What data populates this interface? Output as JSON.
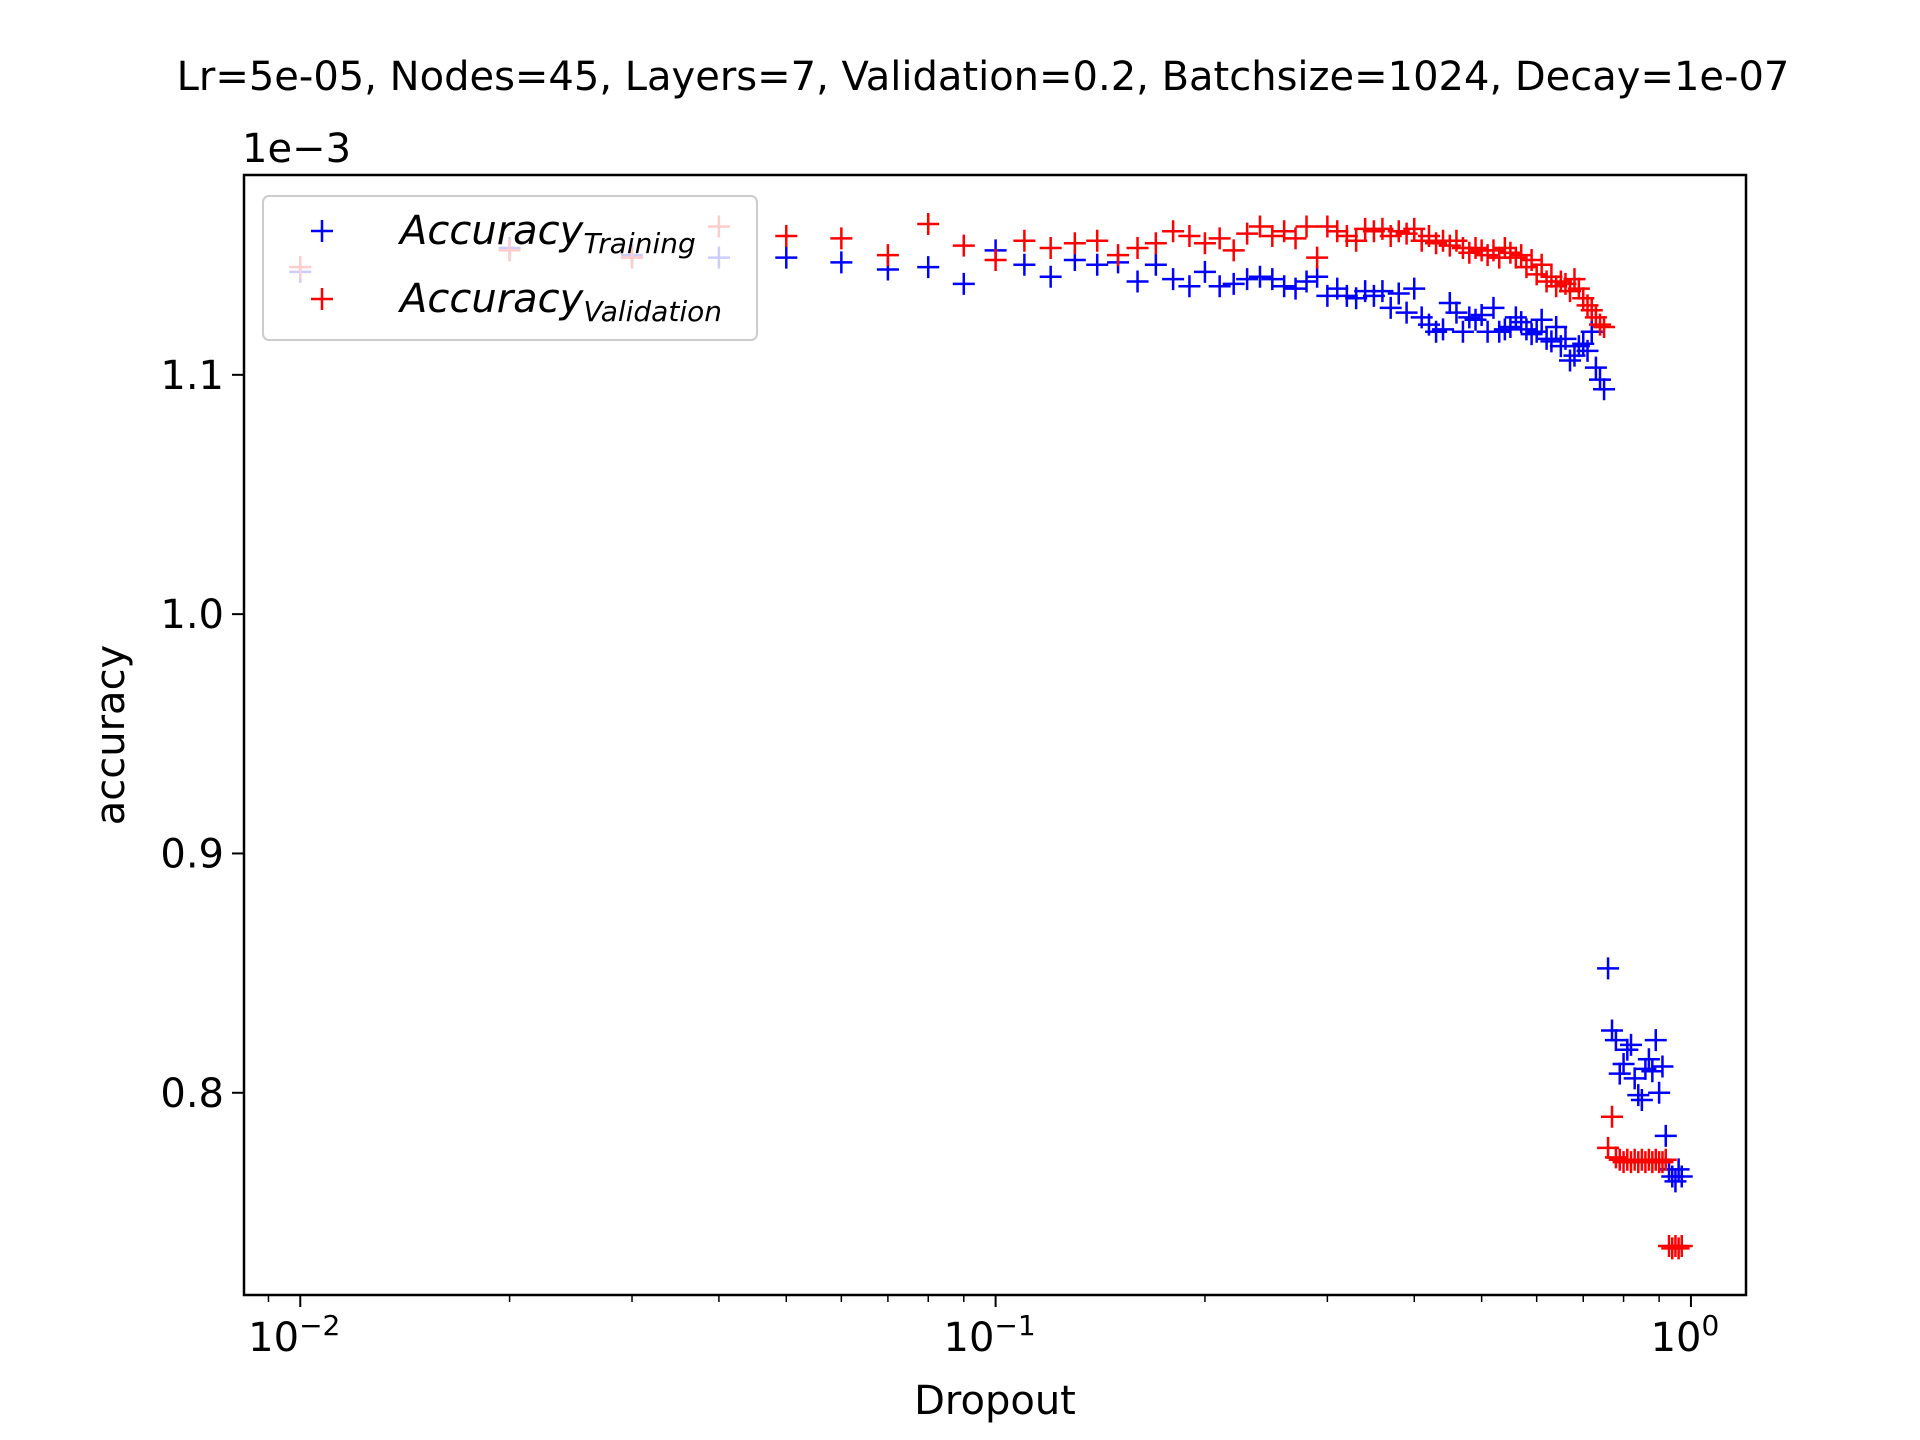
{
  "chart_data": {
    "type": "scatter",
    "title": "Lr=5e-05, Nodes=45, Layers=7, Validation=0.2, Batchsize=1024, Decay=1e-07",
    "xlabel": "Dropout",
    "ylabel": "accuracy",
    "y_offset_text": "1e−3",
    "x_scale": "log",
    "xlim": [
      0.0083,
      1.2
    ],
    "ylim": [
      0.7155,
      1.1835
    ],
    "y_unit_multiplier": 0.001,
    "x_ticks": [
      {
        "value": 0.01,
        "base": "10",
        "exp": "−2"
      },
      {
        "value": 0.1,
        "base": "10",
        "exp": "−1"
      },
      {
        "value": 1,
        "base": "10",
        "exp": "0"
      }
    ],
    "y_ticks": [
      {
        "value": 0.8,
        "label": "0.8"
      },
      {
        "value": 0.9,
        "label": "0.9"
      },
      {
        "value": 1.0,
        "label": "1.0"
      },
      {
        "value": 1.1,
        "label": "1.1"
      }
    ],
    "legend": {
      "position": "top-left",
      "entries": [
        {
          "main": "Accuracy",
          "sub": "Training",
          "color": "#0000ff"
        },
        {
          "main": "Accuracy",
          "sub": "Validation",
          "color": "#ff0000"
        }
      ]
    },
    "grid": false,
    "series": [
      {
        "name": "Accuracy_Training",
        "color": "#0000ff",
        "marker": "+",
        "points": [
          [
            0.01,
            1.143
          ],
          [
            0.02,
            1.153
          ],
          [
            0.03,
            1.15
          ],
          [
            0.04,
            1.149
          ],
          [
            0.05,
            1.149
          ],
          [
            0.06,
            1.147
          ],
          [
            0.07,
            1.144
          ],
          [
            0.08,
            1.145
          ],
          [
            0.09,
            1.138
          ],
          [
            0.1,
            1.152
          ],
          [
            0.11,
            1.146
          ],
          [
            0.12,
            1.141
          ],
          [
            0.13,
            1.148
          ],
          [
            0.14,
            1.146
          ],
          [
            0.15,
            1.147
          ],
          [
            0.16,
            1.139
          ],
          [
            0.17,
            1.146
          ],
          [
            0.18,
            1.14
          ],
          [
            0.19,
            1.137
          ],
          [
            0.2,
            1.143
          ],
          [
            0.21,
            1.137
          ],
          [
            0.22,
            1.138
          ],
          [
            0.23,
            1.14
          ],
          [
            0.24,
            1.141
          ],
          [
            0.25,
            1.14
          ],
          [
            0.26,
            1.137
          ],
          [
            0.27,
            1.136
          ],
          [
            0.28,
            1.139
          ],
          [
            0.29,
            1.141
          ],
          [
            0.3,
            1.133
          ],
          [
            0.31,
            1.136
          ],
          [
            0.32,
            1.133
          ],
          [
            0.33,
            1.132
          ],
          [
            0.34,
            1.135
          ],
          [
            0.35,
            1.133
          ],
          [
            0.36,
            1.135
          ],
          [
            0.37,
            1.128
          ],
          [
            0.38,
            1.134
          ],
          [
            0.39,
            1.126
          ],
          [
            0.4,
            1.136
          ],
          [
            0.41,
            1.124
          ],
          [
            0.42,
            1.121
          ],
          [
            0.43,
            1.118
          ],
          [
            0.44,
            1.119
          ],
          [
            0.45,
            1.13
          ],
          [
            0.46,
            1.126
          ],
          [
            0.47,
            1.118
          ],
          [
            0.48,
            1.124
          ],
          [
            0.49,
            1.123
          ],
          [
            0.5,
            1.125
          ],
          [
            0.51,
            1.118
          ],
          [
            0.52,
            1.128
          ],
          [
            0.53,
            1.118
          ],
          [
            0.54,
            1.119
          ],
          [
            0.55,
            1.12
          ],
          [
            0.56,
            1.124
          ],
          [
            0.57,
            1.122
          ],
          [
            0.58,
            1.119
          ],
          [
            0.59,
            1.117
          ],
          [
            0.6,
            1.118
          ],
          [
            0.61,
            1.123
          ],
          [
            0.62,
            1.115
          ],
          [
            0.63,
            1.114
          ],
          [
            0.64,
            1.12
          ],
          [
            0.65,
            1.112
          ],
          [
            0.66,
            1.115
          ],
          [
            0.67,
            1.106
          ],
          [
            0.68,
            1.108
          ],
          [
            0.69,
            1.112
          ],
          [
            0.7,
            1.113
          ],
          [
            0.71,
            1.11
          ],
          [
            0.72,
            1.118
          ],
          [
            0.73,
            1.103
          ],
          [
            0.74,
            1.098
          ],
          [
            0.75,
            1.094
          ],
          [
            0.76,
            0.852
          ],
          [
            0.77,
            0.826
          ],
          [
            0.78,
            0.822
          ],
          [
            0.79,
            0.808
          ],
          [
            0.8,
            0.812
          ],
          [
            0.81,
            0.818
          ],
          [
            0.82,
            0.82
          ],
          [
            0.83,
            0.806
          ],
          [
            0.84,
            0.799
          ],
          [
            0.85,
            0.797
          ],
          [
            0.86,
            0.81
          ],
          [
            0.87,
            0.814
          ],
          [
            0.88,
            0.809
          ],
          [
            0.89,
            0.822
          ],
          [
            0.9,
            0.8
          ],
          [
            0.91,
            0.811
          ],
          [
            0.92,
            0.782
          ],
          [
            0.93,
            0.768
          ],
          [
            0.94,
            0.765
          ],
          [
            0.95,
            0.763
          ],
          [
            0.96,
            0.768
          ],
          [
            0.97,
            0.765
          ]
        ]
      },
      {
        "name": "Accuracy_Validation",
        "color": "#ff0000",
        "marker": "+",
        "points": [
          [
            0.01,
            1.145
          ],
          [
            0.02,
            1.152
          ],
          [
            0.03,
            1.149
          ],
          [
            0.04,
            1.162
          ],
          [
            0.05,
            1.158
          ],
          [
            0.06,
            1.157
          ],
          [
            0.07,
            1.15
          ],
          [
            0.08,
            1.163
          ],
          [
            0.09,
            1.154
          ],
          [
            0.1,
            1.148
          ],
          [
            0.11,
            1.156
          ],
          [
            0.12,
            1.153
          ],
          [
            0.13,
            1.155
          ],
          [
            0.14,
            1.156
          ],
          [
            0.15,
            1.15
          ],
          [
            0.16,
            1.153
          ],
          [
            0.17,
            1.155
          ],
          [
            0.18,
            1.16
          ],
          [
            0.19,
            1.158
          ],
          [
            0.2,
            1.155
          ],
          [
            0.21,
            1.157
          ],
          [
            0.22,
            1.152
          ],
          [
            0.23,
            1.159
          ],
          [
            0.24,
            1.162
          ],
          [
            0.25,
            1.158
          ],
          [
            0.26,
            1.16
          ],
          [
            0.27,
            1.157
          ],
          [
            0.28,
            1.162
          ],
          [
            0.29,
            1.149
          ],
          [
            0.3,
            1.162
          ],
          [
            0.31,
            1.16
          ],
          [
            0.32,
            1.158
          ],
          [
            0.33,
            1.156
          ],
          [
            0.34,
            1.161
          ],
          [
            0.35,
            1.16
          ],
          [
            0.36,
            1.161
          ],
          [
            0.37,
            1.158
          ],
          [
            0.38,
            1.16
          ],
          [
            0.39,
            1.159
          ],
          [
            0.4,
            1.161
          ],
          [
            0.41,
            1.156
          ],
          [
            0.42,
            1.158
          ],
          [
            0.43,
            1.155
          ],
          [
            0.44,
            1.156
          ],
          [
            0.45,
            1.154
          ],
          [
            0.46,
            1.156
          ],
          [
            0.47,
            1.153
          ],
          [
            0.48,
            1.151
          ],
          [
            0.49,
            1.153
          ],
          [
            0.5,
            1.152
          ],
          [
            0.51,
            1.15
          ],
          [
            0.52,
            1.152
          ],
          [
            0.53,
            1.149
          ],
          [
            0.54,
            1.153
          ],
          [
            0.55,
            1.151
          ],
          [
            0.56,
            1.149
          ],
          [
            0.57,
            1.15
          ],
          [
            0.58,
            1.145
          ],
          [
            0.59,
            1.148
          ],
          [
            0.6,
            1.142
          ],
          [
            0.61,
            1.146
          ],
          [
            0.62,
            1.139
          ],
          [
            0.63,
            1.141
          ],
          [
            0.64,
            1.137
          ],
          [
            0.65,
            1.139
          ],
          [
            0.66,
            1.138
          ],
          [
            0.67,
            1.135
          ],
          [
            0.68,
            1.14
          ],
          [
            0.69,
            1.136
          ],
          [
            0.7,
            1.132
          ],
          [
            0.71,
            1.129
          ],
          [
            0.72,
            1.127
          ],
          [
            0.73,
            1.124
          ],
          [
            0.74,
            1.121
          ],
          [
            0.75,
            1.12
          ],
          [
            0.76,
            0.777
          ],
          [
            0.77,
            0.79
          ],
          [
            0.78,
            0.773
          ],
          [
            0.79,
            0.772
          ],
          [
            0.8,
            0.771
          ],
          [
            0.81,
            0.772
          ],
          [
            0.82,
            0.771
          ],
          [
            0.83,
            0.772
          ],
          [
            0.84,
            0.771
          ],
          [
            0.85,
            0.772
          ],
          [
            0.86,
            0.771
          ],
          [
            0.87,
            0.772
          ],
          [
            0.88,
            0.771
          ],
          [
            0.89,
            0.772
          ],
          [
            0.9,
            0.771
          ],
          [
            0.91,
            0.771
          ],
          [
            0.92,
            0.772
          ],
          [
            0.93,
            0.736
          ],
          [
            0.94,
            0.735
          ],
          [
            0.95,
            0.736
          ],
          [
            0.96,
            0.735
          ],
          [
            0.97,
            0.736
          ]
        ]
      }
    ]
  }
}
